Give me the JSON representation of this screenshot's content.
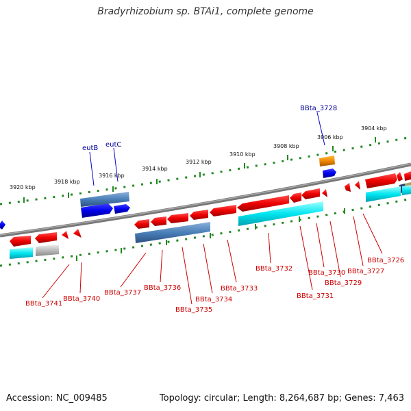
{
  "title": "Bradyrhizobium sp. BTAi1, complete genome",
  "footer": {
    "accession": "Accession: NC_009485",
    "summary": "Topology: circular; Length: 8,264,687 bp; Genes: 7,463"
  },
  "colors": {
    "forward_gene": "#e00000",
    "forward_cds_blue": "#1010e0",
    "reverse_gene": "#e00000",
    "cds_cyan": "#00e0ee",
    "cds_steel": "#4a7fb8",
    "cds_grey": "#bbbbbb",
    "cds_orange": "#ee8800",
    "backbone": "#808080",
    "tick": "#228822",
    "label_red": "#cc0000",
    "label_blue": "#000099"
  },
  "ruler_labels": [
    "3920 kbp",
    "3918 kbp",
    "3916 kbp",
    "3914 kbp",
    "3912 kbp",
    "3910 kbp",
    "3908 kbp",
    "3906 kbp",
    "3904 kbp"
  ],
  "top_labels": [
    "eutB",
    "eutC",
    "BBta_3728"
  ],
  "bottom_labels": [
    "BBta_3741",
    "BBta_3740",
    "BBta_3737",
    "BBta_3736",
    "BBta_3735",
    "BBta_3734",
    "BBta_3733",
    "BBta_3732",
    "BBta_3731",
    "BBta_3730",
    "BBta_3729",
    "BBta_3727",
    "BBta_3726"
  ]
}
